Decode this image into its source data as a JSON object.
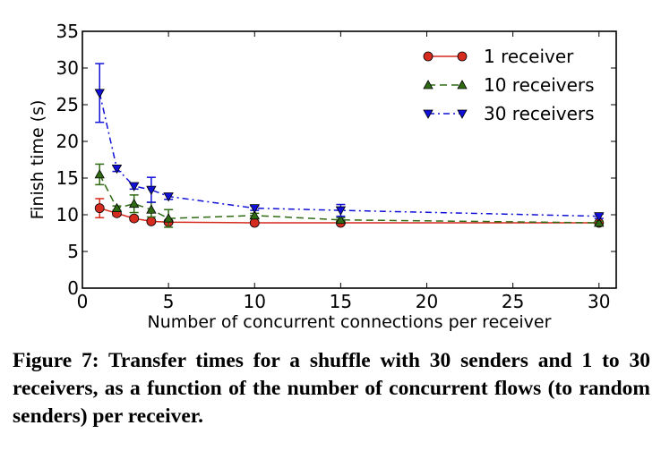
{
  "chart_data": {
    "type": "line",
    "title": "",
    "xlabel": "Number of concurrent connections per receiver",
    "ylabel": "Finish time (s)",
    "xlim": [
      0,
      31
    ],
    "ylim": [
      0,
      35
    ],
    "xticks": [
      0,
      5,
      10,
      15,
      20,
      25,
      30
    ],
    "yticks": [
      0,
      5,
      10,
      15,
      20,
      25,
      30,
      35
    ],
    "grid": false,
    "legend_position": "top-right",
    "series": [
      {
        "name": "1 receiver",
        "color": "#d62c20",
        "marker": "circle",
        "line_style": "solid",
        "x": [
          1,
          2,
          3,
          4,
          5,
          10,
          15,
          30
        ],
        "y": [
          10.9,
          10.2,
          9.5,
          9.1,
          9.0,
          8.9,
          8.9,
          8.9
        ],
        "err": [
          1.3,
          0.3,
          0.3,
          0.2,
          0.2,
          0.2,
          0.2,
          0.2
        ]
      },
      {
        "name": "10 receivers",
        "color": "#2f6b12",
        "marker": "triangle-up",
        "line_style": "dashed",
        "x": [
          1,
          2,
          3,
          4,
          5,
          10,
          15,
          30
        ],
        "y": [
          15.5,
          10.9,
          11.5,
          10.7,
          9.5,
          9.9,
          9.3,
          8.9
        ],
        "err": [
          1.4,
          0.3,
          1.2,
          1.0,
          1.2,
          0.3,
          0.3,
          0.2
        ]
      },
      {
        "name": "30 receivers",
        "color": "#1010d8",
        "marker": "triangle-down",
        "line_style": "dashdot",
        "x": [
          1,
          2,
          3,
          4,
          5,
          10,
          15,
          30
        ],
        "y": [
          26.6,
          16.3,
          13.9,
          13.4,
          12.5,
          10.9,
          10.6,
          9.8
        ],
        "err": [
          4.0,
          0.4,
          0.4,
          1.7,
          0.4,
          0.3,
          0.8,
          0.3
        ]
      }
    ]
  },
  "caption": "Figure 7: Transfer times for a shuffle with 30 senders and 1 to 30 receivers, as a function of the number of concurrent flows (to random senders) per receiver."
}
